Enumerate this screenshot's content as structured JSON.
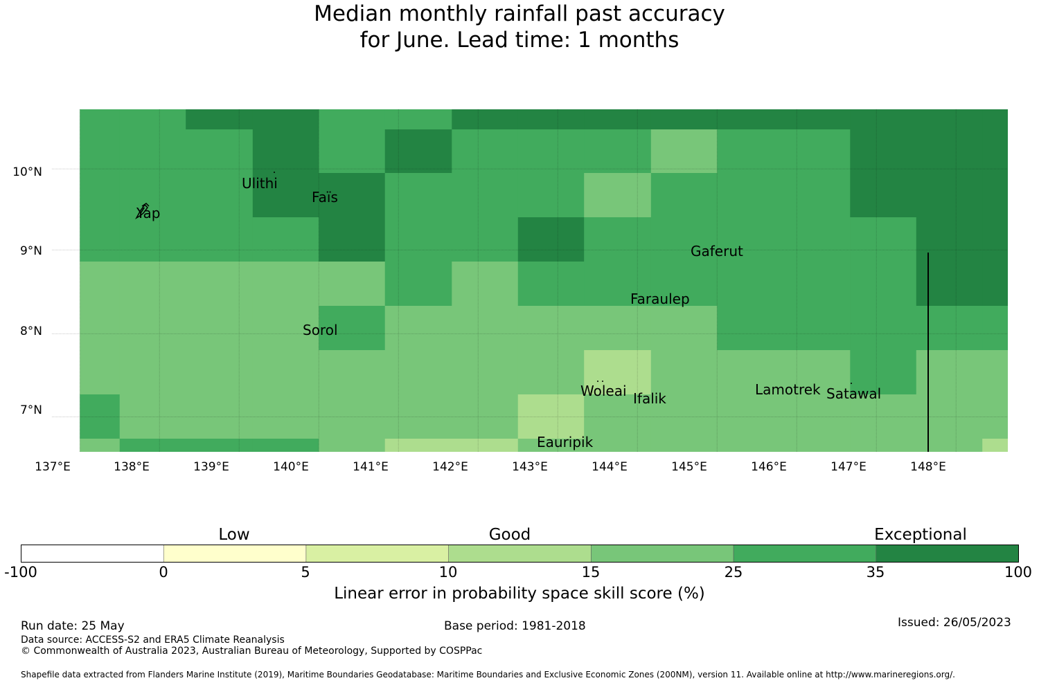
{
  "title": {
    "line1": "Median monthly rainfall past accuracy",
    "line2": "for June. Lead time: 1 months"
  },
  "map": {
    "lat_labels": [
      "10°N",
      "9°N",
      "8°N",
      "7°N"
    ],
    "lon_labels": [
      "137°E",
      "138°E",
      "139°E",
      "140°E",
      "141°E",
      "142°E",
      "143°E",
      "144°E",
      "145°E",
      "146°E",
      "147°E",
      "148°E"
    ],
    "places": [
      "Yap",
      "Ulithi",
      "Faïs",
      "Gaferut",
      "Faraulep",
      "Sorol",
      "Woleai",
      "Ifalik",
      "Lamotrek",
      "Satawal",
      "Eauripik"
    ],
    "colors": {
      "c5_10": "#acdc8a",
      "c10_15": "#78c679",
      "c15_25": "#41ab5d",
      "c25_35": "#238443"
    }
  },
  "chart_data": {
    "type": "heatmap",
    "columns_lon_edges": [
      137.0,
      137.5,
      138.33,
      139.17,
      140.0,
      140.83,
      141.67,
      142.5,
      143.33,
      144.17,
      145.0,
      145.83,
      146.67,
      147.5,
      148.33,
      149.0
    ],
    "rows_lat_edges_top_to_bottom": [
      10.8,
      10.55,
      10.0,
      9.45,
      8.9,
      8.33,
      7.78,
      7.22,
      6.67,
      6.5
    ],
    "cells_category_index": [
      [
        3,
        3,
        4,
        4,
        3,
        3,
        4,
        4,
        4,
        4,
        4,
        4,
        4,
        4,
        4
      ],
      [
        3,
        3,
        3,
        4,
        3,
        4,
        3,
        3,
        3,
        2,
        3,
        3,
        4,
        4,
        4
      ],
      [
        3,
        3,
        3,
        4,
        4,
        3,
        3,
        3,
        2,
        3,
        3,
        3,
        4,
        4,
        4
      ],
      [
        3,
        3,
        3,
        3,
        4,
        3,
        3,
        4,
        3,
        3,
        3,
        3,
        3,
        4,
        4
      ],
      [
        2,
        2,
        2,
        2,
        2,
        3,
        2,
        3,
        3,
        3,
        3,
        3,
        3,
        4,
        4
      ],
      [
        2,
        2,
        2,
        2,
        3,
        2,
        2,
        2,
        2,
        2,
        3,
        3,
        3,
        3,
        3
      ],
      [
        2,
        2,
        2,
        2,
        2,
        2,
        2,
        2,
        1,
        2,
        2,
        2,
        3,
        2,
        2
      ],
      [
        3,
        2,
        2,
        2,
        2,
        2,
        2,
        1,
        2,
        2,
        2,
        2,
        2,
        2,
        2
      ],
      [
        2,
        3,
        3,
        3,
        2,
        1,
        1,
        2,
        2,
        2,
        2,
        2,
        2,
        2,
        1
      ]
    ],
    "colorbar": {
      "boundaries": [
        "-100",
        "0",
        "5",
        "10",
        "15",
        "25",
        "35",
        "100"
      ],
      "colors": [
        "#ffffff",
        "#ffffcc",
        "#d9f0a3",
        "#addd8e",
        "#78c679",
        "#41ab5d",
        "#238443"
      ],
      "categories": [
        "Low",
        "Good",
        "Exceptional"
      ],
      "label": "Linear error in probability space skill score (%)"
    }
  },
  "footer": {
    "run_date": "Run date: 25 May",
    "base_period": "Base period: 1981-2018",
    "issued": "Issued: 26/05/2023",
    "data_source": "Data source: ACCESS-S2 and ERA5 Climate Reanalysis",
    "copyright": "© Commonwealth of Australia 2023, Australian Bureau of Meteorology, Supported by COSPPac",
    "shapefile": "Shapefile data extracted from Flanders Marine Institute (2019), Maritime Boundaries Geodatabase: Maritime Boundaries and Exclusive Economic Zones (200NM), version 11. Available online at http://www.marineregions.org/."
  }
}
